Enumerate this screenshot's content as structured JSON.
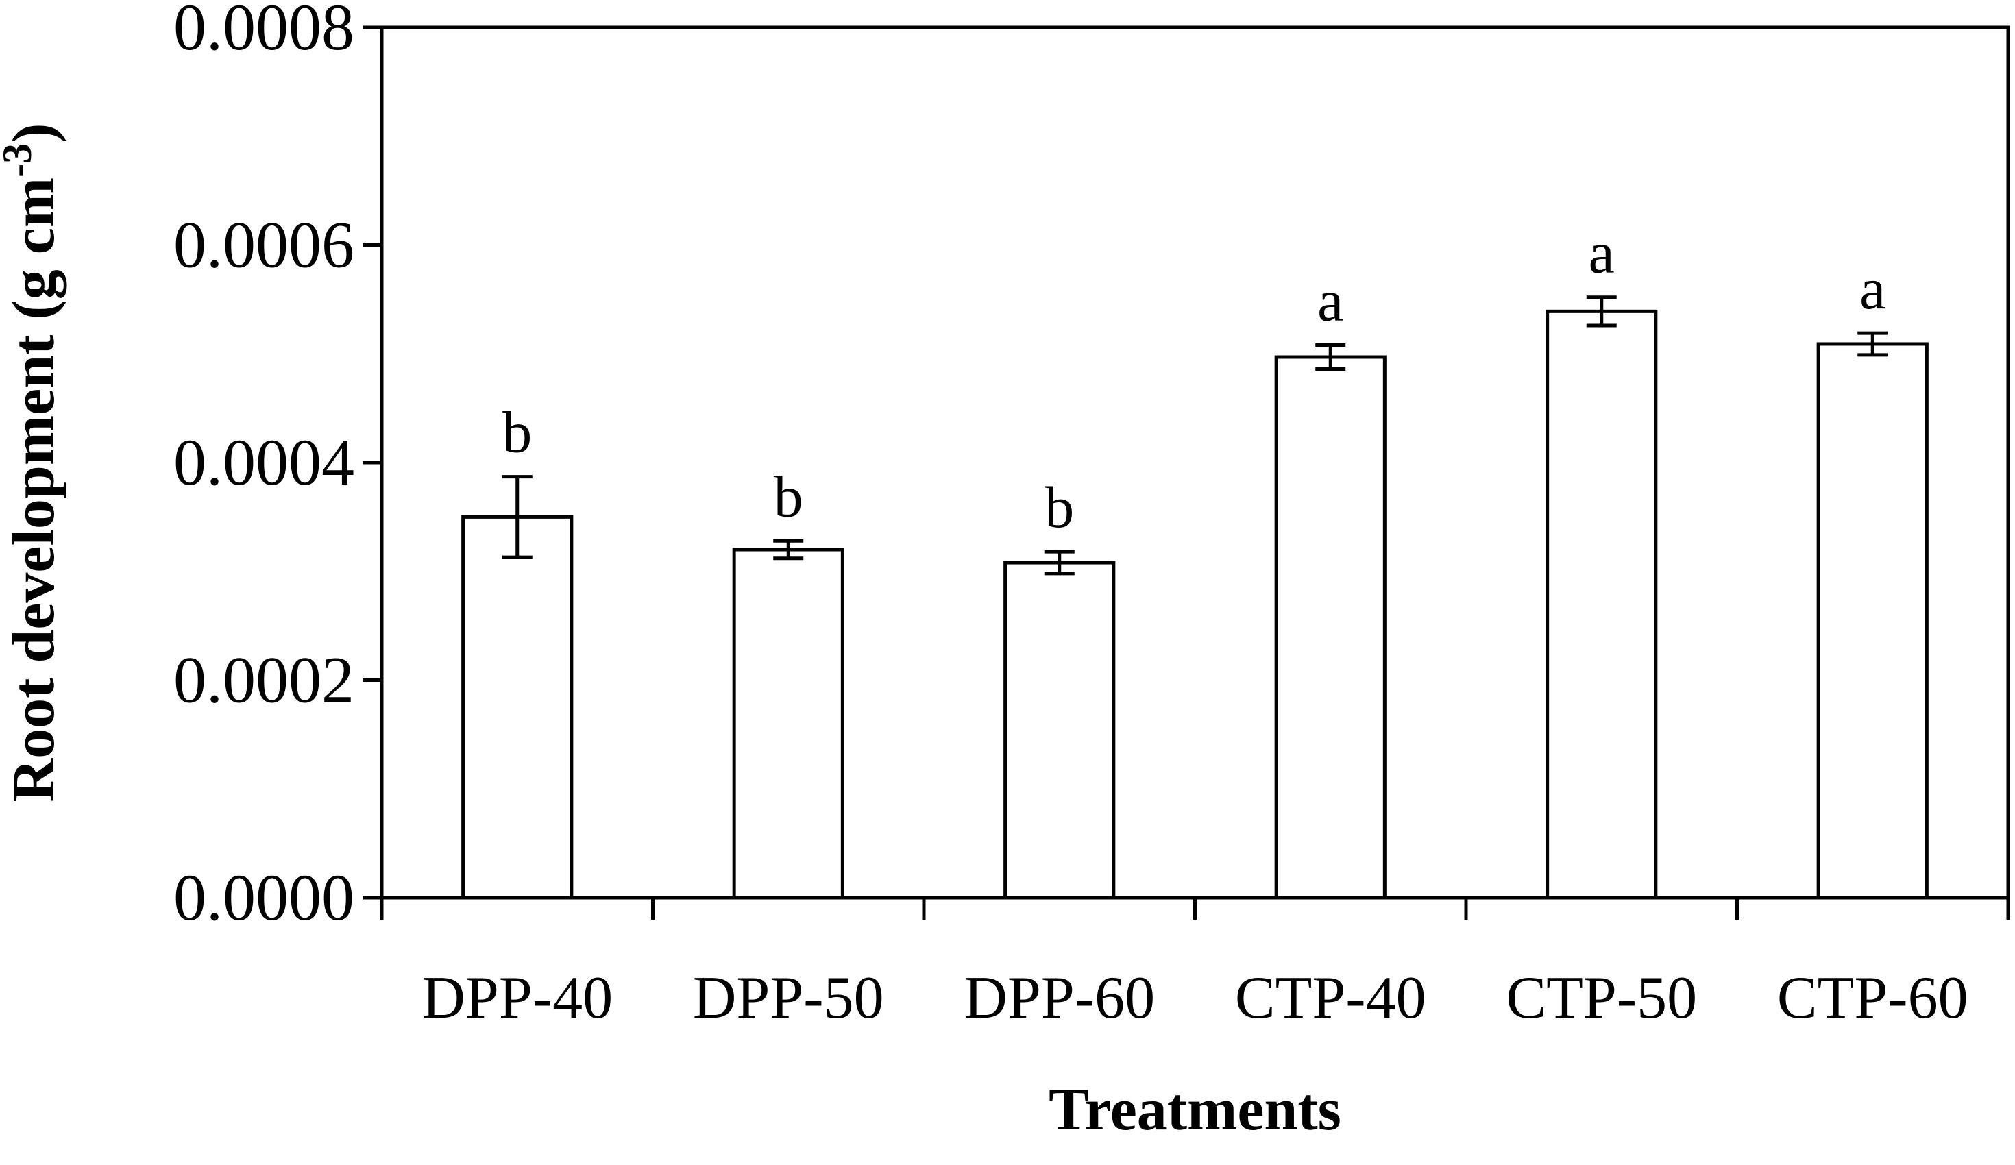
{
  "chart_data": {
    "type": "bar",
    "title": "",
    "xlabel": "Treatments",
    "ylabel": "Root development (g cm",
    "ylabel_sup": "-3",
    "ylabel_close": ")",
    "ylim": [
      0,
      0.0008
    ],
    "yticks": [
      0,
      0.0002,
      0.0004,
      0.0006,
      0.0008
    ],
    "ytick_labels": [
      "0.0000",
      "0.0002",
      "0.0004",
      "0.0006",
      "0.0008"
    ],
    "categories": [
      "DPP-40",
      "DPP-50",
      "DPP-60",
      "CTP-40",
      "CTP-50",
      "CTP-60"
    ],
    "values": [
      0.00035,
      0.00032,
      0.000308,
      0.000497,
      0.000539,
      0.000509
    ],
    "errors": [
      3.7e-05,
      8e-06,
      1e-05,
      1.1e-05,
      1.3e-05,
      1e-05
    ],
    "significance": [
      "b",
      "b",
      "b",
      "a",
      "a",
      "a"
    ],
    "grid": false,
    "legend": "none",
    "bar_fill": "#ffffff",
    "bar_stroke": "#000000"
  }
}
